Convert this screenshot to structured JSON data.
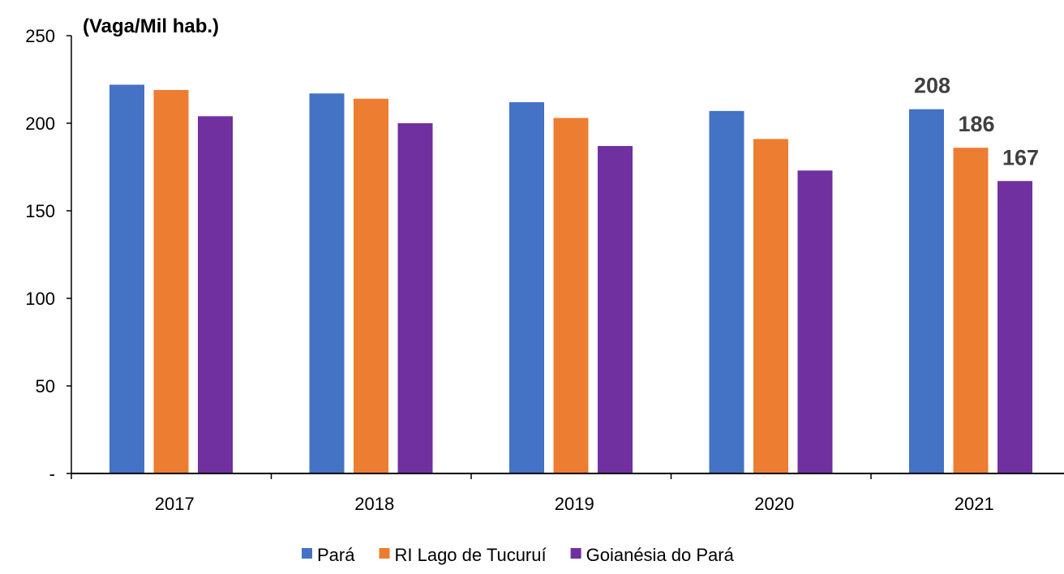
{
  "chart_data": {
    "type": "bar",
    "ylabel": "(Vaga/Mil hab.)",
    "categories": [
      "2017",
      "2018",
      "2019",
      "2020",
      "2021"
    ],
    "ylim": [
      0,
      250
    ],
    "yticks": [
      {
        "value": 0,
        "label": "-"
      },
      {
        "value": 50,
        "label": "50"
      },
      {
        "value": 100,
        "label": "100"
      },
      {
        "value": 150,
        "label": "150"
      },
      {
        "value": 200,
        "label": "200"
      },
      {
        "value": 250,
        "label": "250"
      }
    ],
    "grid": false,
    "legend_position": "bottom",
    "series": [
      {
        "name": "Pará",
        "color": "#4472C4",
        "values": [
          222,
          217,
          212,
          207,
          208
        ]
      },
      {
        "name": "RI Lago de Tucuruí",
        "color": "#ED7D31",
        "values": [
          219,
          214,
          203,
          191,
          186
        ]
      },
      {
        "name": "Goianésia do Pará",
        "color": "#7030A0",
        "values": [
          204,
          200,
          187,
          173,
          167
        ]
      }
    ],
    "data_labels": [
      {
        "series": 0,
        "category": "2021",
        "text": "208"
      },
      {
        "series": 1,
        "category": "2021",
        "text": "186"
      },
      {
        "series": 2,
        "category": "2021",
        "text": "167"
      }
    ]
  }
}
